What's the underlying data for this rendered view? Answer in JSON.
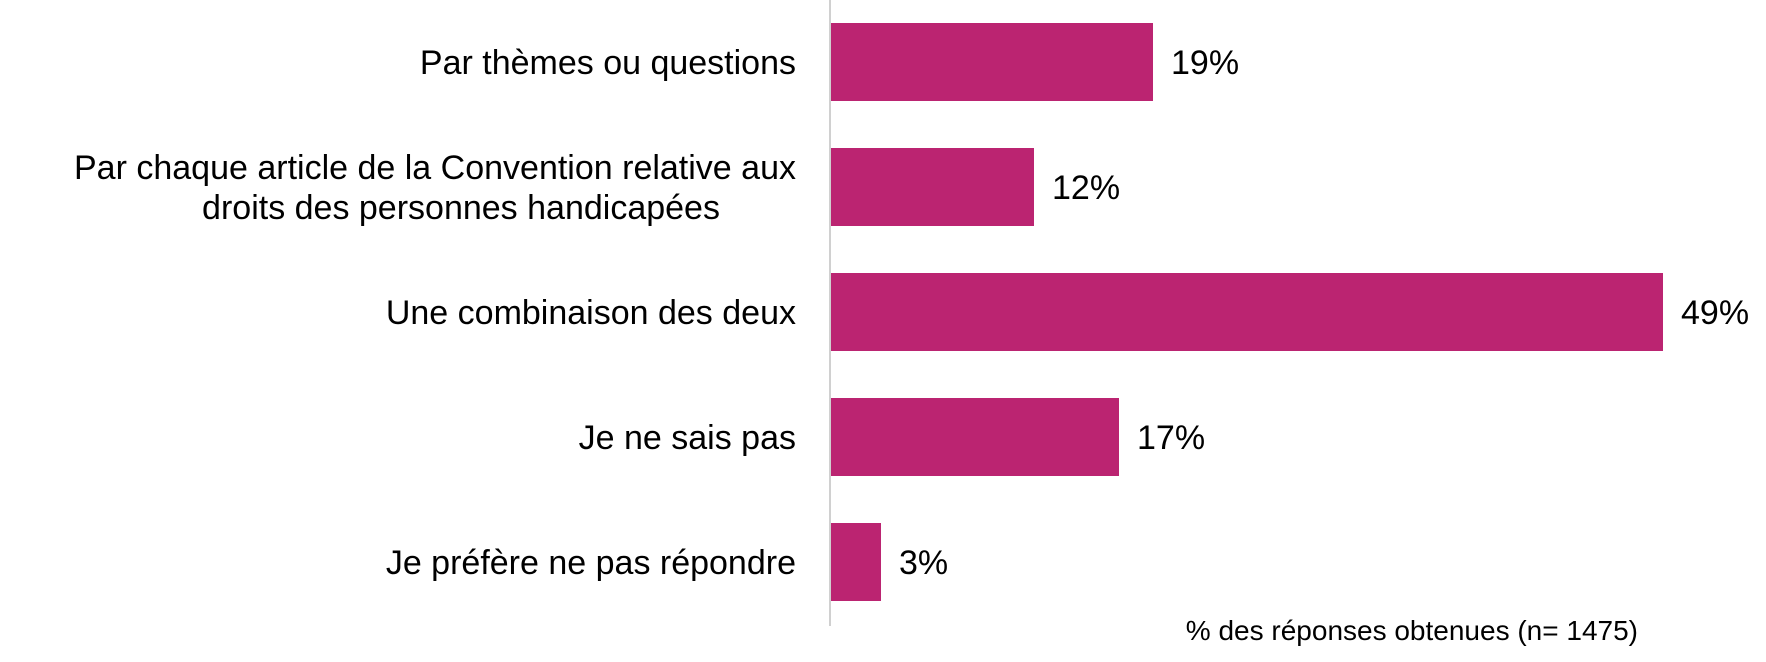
{
  "chart_data": {
    "type": "bar",
    "orientation": "horizontal",
    "categories": [
      [
        "Par thèmes ou questions"
      ],
      [
        "Par chaque article de la Convention relative aux",
        "droits des personnes handicapées"
      ],
      [
        "Une combinaison des deux"
      ],
      [
        "Je ne sais pas"
      ],
      [
        "Je préfère ne pas répondre"
      ]
    ],
    "values": [
      19,
      12,
      49,
      17,
      3
    ],
    "value_labels": [
      "19%",
      "12%",
      "49%",
      "17%",
      "3%"
    ],
    "unit": "%",
    "xlim": [
      0,
      49
    ],
    "bar_color": "#BB2471",
    "axis_color": "#D0D0D0",
    "grid": false,
    "legend": "none",
    "note": "% des réponses obtenues (n= 1475)"
  }
}
